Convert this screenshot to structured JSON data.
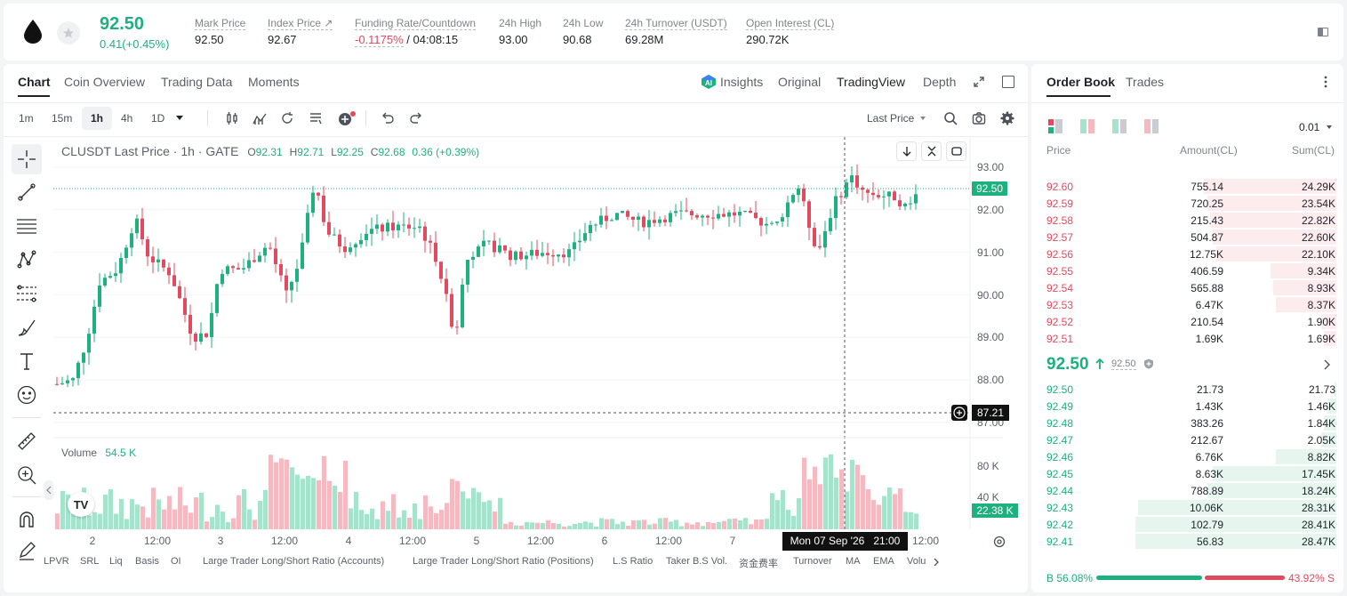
{
  "ticker": {
    "price": "92.50",
    "change": "0.41(+0.45%)",
    "stats": [
      {
        "label": "Mark Price",
        "value": "92.50"
      },
      {
        "label": "Index Price ↗",
        "value": "92.67"
      },
      {
        "label": "Funding Rate/Countdown",
        "value_red": "-0.1175%",
        "value_rest": " / 04:08:15"
      },
      {
        "label": "24h High",
        "value": "93.00"
      },
      {
        "label": "24h Low",
        "value": "90.68"
      },
      {
        "label": "24h Turnover (USDT)",
        "value": "69.28M"
      },
      {
        "label": "Open Interest (CL)",
        "value": "290.72K"
      }
    ]
  },
  "chart_tabs": [
    "Chart",
    "Coin Overview",
    "Trading Data",
    "Moments"
  ],
  "view_tabs": [
    "Insights",
    "Original",
    "TradingView",
    "Depth"
  ],
  "timeframes": [
    "1m",
    "15m",
    "1h",
    "4h",
    "1D"
  ],
  "price_source": "Last Price",
  "legend": {
    "symbol": "CLUSDT Last Price · 1h · GATE",
    "o_label": "O",
    "o": "92.31",
    "h_label": "H",
    "h": "92.71",
    "l_label": "L",
    "l": "92.25",
    "c_label": "C",
    "c": "92.68",
    "change": "0.36 (+0.39%)"
  },
  "volume_legend": {
    "label": "Volume",
    "value": "54.5 K"
  },
  "price_tags": {
    "last": "92.50",
    "cursor": "87.21",
    "volume": "22.38 K"
  },
  "crosshair_date": "Mon 07 Sep '26   21:00",
  "y_labels": [
    "93.00",
    "92.00",
    "91.00",
    "90.00",
    "89.00",
    "88.00",
    "87.00"
  ],
  "vol_labels": [
    "80 K",
    "40 K"
  ],
  "x_labels": [
    "2",
    "12:00",
    "3",
    "12:00",
    "4",
    "12:00",
    "5",
    "12:00",
    "6",
    "12:00",
    "7",
    "12:00"
  ],
  "indicators": [
    "LPVR",
    "SRL",
    "Liq",
    "Basis",
    "OI",
    "Large Trader Long/Short Ratio (Accounts)",
    "Large Trader Long/Short Ratio (Positions)",
    "L.S Ratio",
    "Taker B.S Vol.",
    "资金费率",
    "Turnover",
    "MA",
    "EMA",
    "Volu"
  ],
  "tv_logo": "TV",
  "orderbook": {
    "tabs": [
      "Order Book",
      "Trades"
    ],
    "precision": "0.01",
    "headers": [
      "Price",
      "Amount(CL)",
      "Sum(CL)"
    ],
    "asks": [
      {
        "price": "92.60",
        "amount": "755.14",
        "sum": "24.29K",
        "depth": 0.44
      },
      {
        "price": "92.59",
        "amount": "720.25",
        "sum": "23.54K",
        "depth": 0.43
      },
      {
        "price": "92.58",
        "amount": "215.43",
        "sum": "22.82K",
        "depth": 0.42
      },
      {
        "price": "92.57",
        "amount": "504.87",
        "sum": "22.60K",
        "depth": 0.41
      },
      {
        "price": "92.56",
        "amount": "12.75K",
        "sum": "22.10K",
        "depth": 0.4
      },
      {
        "price": "92.55",
        "amount": "406.59",
        "sum": "9.34K",
        "depth": 0.22
      },
      {
        "price": "92.54",
        "amount": "565.88",
        "sum": "8.93K",
        "depth": 0.21
      },
      {
        "price": "92.53",
        "amount": "6.47K",
        "sum": "8.37K",
        "depth": 0.2
      },
      {
        "price": "92.52",
        "amount": "210.54",
        "sum": "1.90K",
        "depth": 0.05
      },
      {
        "price": "92.51",
        "amount": "1.69K",
        "sum": "1.69K",
        "depth": 0.04
      }
    ],
    "mid_price": "92.50",
    "mid_mark": "92.50",
    "bids": [
      {
        "price": "92.50",
        "amount": "21.73",
        "sum": "21.73",
        "depth": 0.005
      },
      {
        "price": "92.49",
        "amount": "1.43K",
        "sum": "1.46K",
        "depth": 0.03
      },
      {
        "price": "92.48",
        "amount": "383.26",
        "sum": "1.84K",
        "depth": 0.04
      },
      {
        "price": "92.47",
        "amount": "212.67",
        "sum": "2.05K",
        "depth": 0.05
      },
      {
        "price": "92.46",
        "amount": "6.76K",
        "sum": "8.82K",
        "depth": 0.2
      },
      {
        "price": "92.45",
        "amount": "8.63K",
        "sum": "17.45K",
        "depth": 0.41
      },
      {
        "price": "92.44",
        "amount": "788.89",
        "sum": "18.24K",
        "depth": 0.43
      },
      {
        "price": "92.43",
        "amount": "10.06K",
        "sum": "28.31K",
        "depth": 0.66
      },
      {
        "price": "92.42",
        "amount": "102.79",
        "sum": "28.41K",
        "depth": 0.67
      },
      {
        "price": "92.41",
        "amount": "56.83",
        "sum": "28.47K",
        "depth": 0.67
      }
    ],
    "buy_label": "B 56.08%",
    "sell_label": "43.92% S",
    "buy_ratio": 0.5608
  },
  "colors": {
    "up": "#1eb07f",
    "down": "#e04b5f",
    "accent": "#1f2229"
  }
}
